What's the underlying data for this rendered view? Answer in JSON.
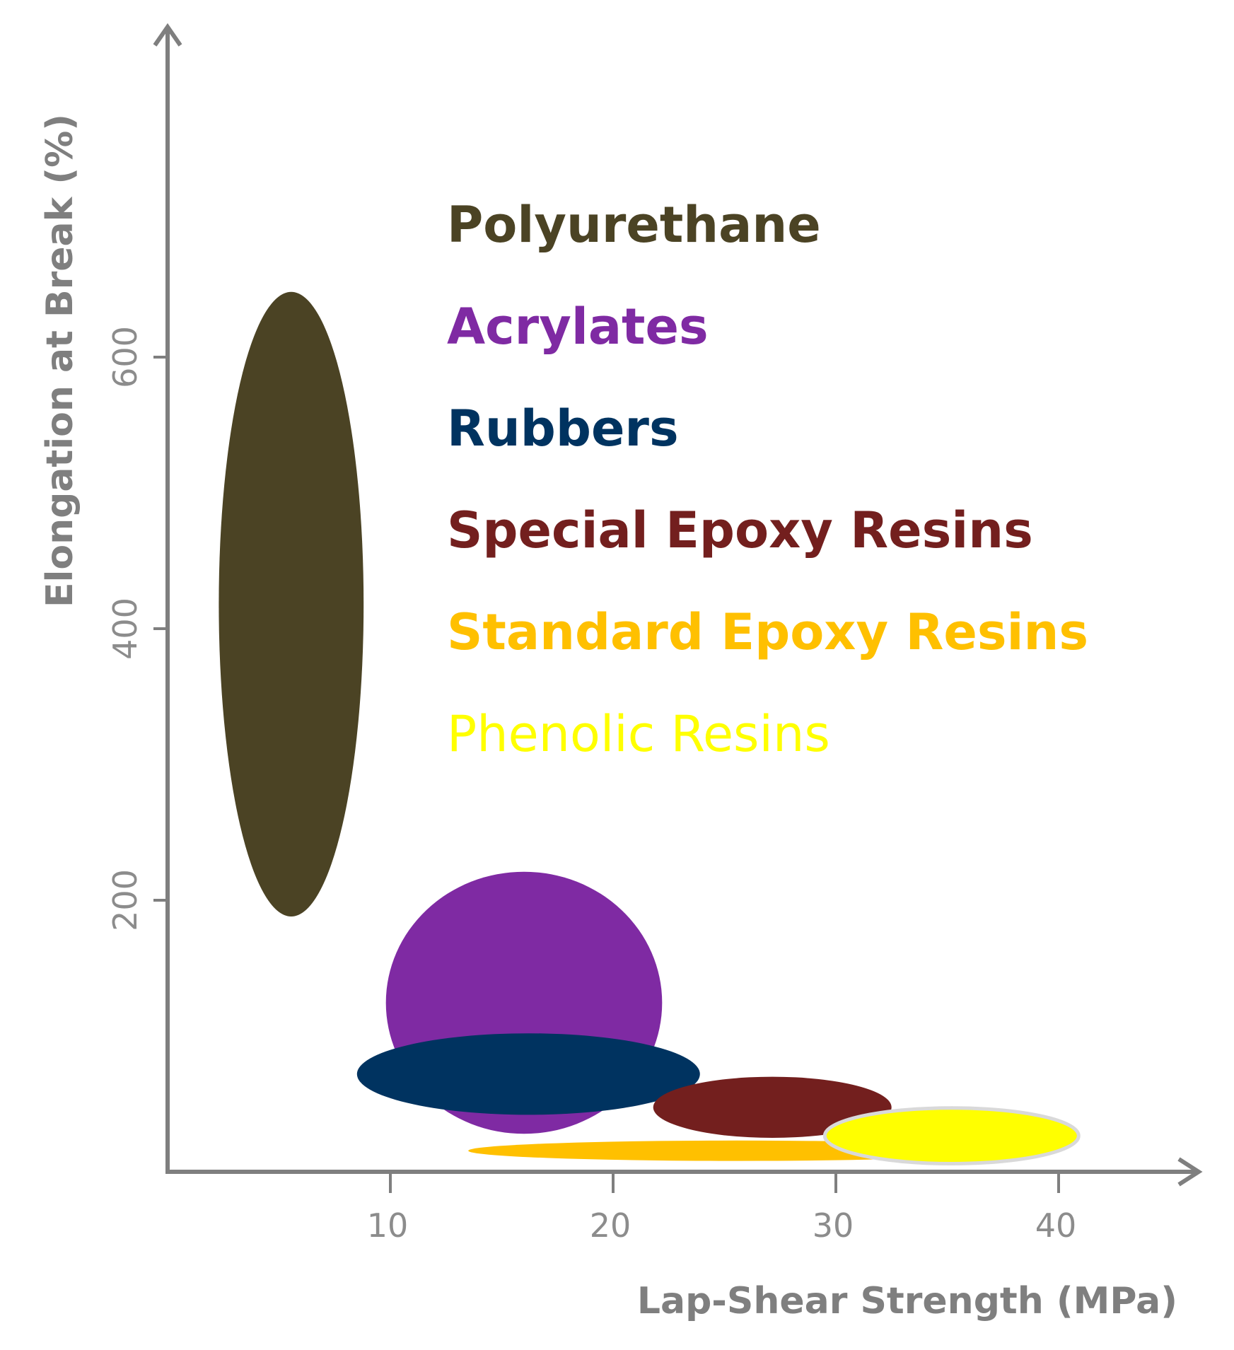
{
  "chart_data": {
    "type": "bubble-region",
    "xlabel": "Lap-Shear Strength (MPa)",
    "ylabel": "Elongation at Break (%)",
    "xlim": [
      0,
      45
    ],
    "ylim": [
      0,
      655
    ],
    "x_ticks": [
      10,
      20,
      30,
      40
    ],
    "y_ticks": [
      200,
      400,
      600
    ],
    "x_tick_labels": [
      "10",
      "20",
      "30",
      "40"
    ],
    "y_tick_labels": [
      "200",
      "400",
      "600"
    ],
    "grid": false,
    "legend_position": "top-right",
    "series": [
      {
        "name": "Polyurethane",
        "color": "#4b4324",
        "x_range": [
          2.3,
          8.8
        ],
        "y_range": [
          188,
          648
        ]
      },
      {
        "name": "Acrylates",
        "color": "#7f2aa3",
        "x_range": [
          9.8,
          22.2
        ],
        "y_range": [
          28,
          221
        ]
      },
      {
        "name": "Rubbers",
        "color": "#003360",
        "x_range": [
          8.5,
          23.9
        ],
        "y_range": [
          42,
          102
        ]
      },
      {
        "name": "Special Epoxy Resins",
        "color": "#731f1e",
        "x_range": [
          21.8,
          32.5
        ],
        "y_range": [
          25,
          70
        ]
      },
      {
        "name": "Standard Epoxy Resins",
        "color": "#ffc000",
        "x_range": [
          13.5,
          37.6
        ],
        "y_range": [
          8,
          23
        ]
      },
      {
        "name": "Phenolic Resins",
        "color": "#ffff00",
        "x_range": [
          29.5,
          40.9
        ],
        "y_range": [
          6,
          47
        ]
      }
    ]
  }
}
